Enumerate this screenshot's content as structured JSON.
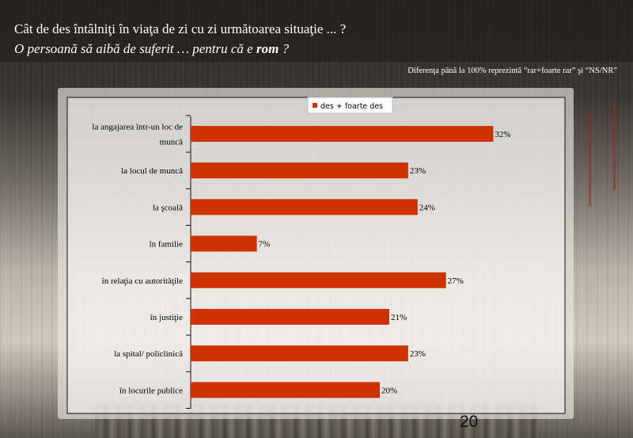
{
  "header": {
    "title_line1": "Cât de des întâlniţi în viaţa de zi cu zi următoarea situaţie ... ?",
    "title_line2_pre": "O persoană să aibă de suferit … pentru că e ",
    "title_line2_bold": "rom",
    "title_line2_post": " ?",
    "note": "Diferenţa până la 100% reprezintă  “rar+foarte rar” şi “NS/NR”"
  },
  "page_number": "20",
  "colors": {
    "bar": "#cc3300",
    "text": "#000000"
  },
  "chart_data": {
    "type": "bar",
    "orientation": "horizontal",
    "categories": [
      "la angajarea într-un loc de muncă",
      "la locul de muncă",
      "la şcoală",
      "în familie",
      "în relaţia cu autorităţile",
      "în justiţie",
      "la spital/ policlinică",
      "în locurile publice"
    ],
    "category_lines": [
      [
        "la angajarea într-un loc de",
        "muncă"
      ],
      [
        "la locul de muncă"
      ],
      [
        "la şcoală"
      ],
      [
        "în familie"
      ],
      [
        "în relaţia cu autorităţile"
      ],
      [
        "în justiţie"
      ],
      [
        "la spital/ policlinică"
      ],
      [
        "în locurile publice"
      ]
    ],
    "series": [
      {
        "name": "des + foarte des",
        "values": [
          32,
          23,
          24,
          7,
          27,
          21,
          23,
          20
        ]
      }
    ],
    "data_labels": [
      "32%",
      "23%",
      "24%",
      "7%",
      "27%",
      "21%",
      "23%",
      "20%"
    ],
    "legend_position": "top-center",
    "grid": false
  }
}
